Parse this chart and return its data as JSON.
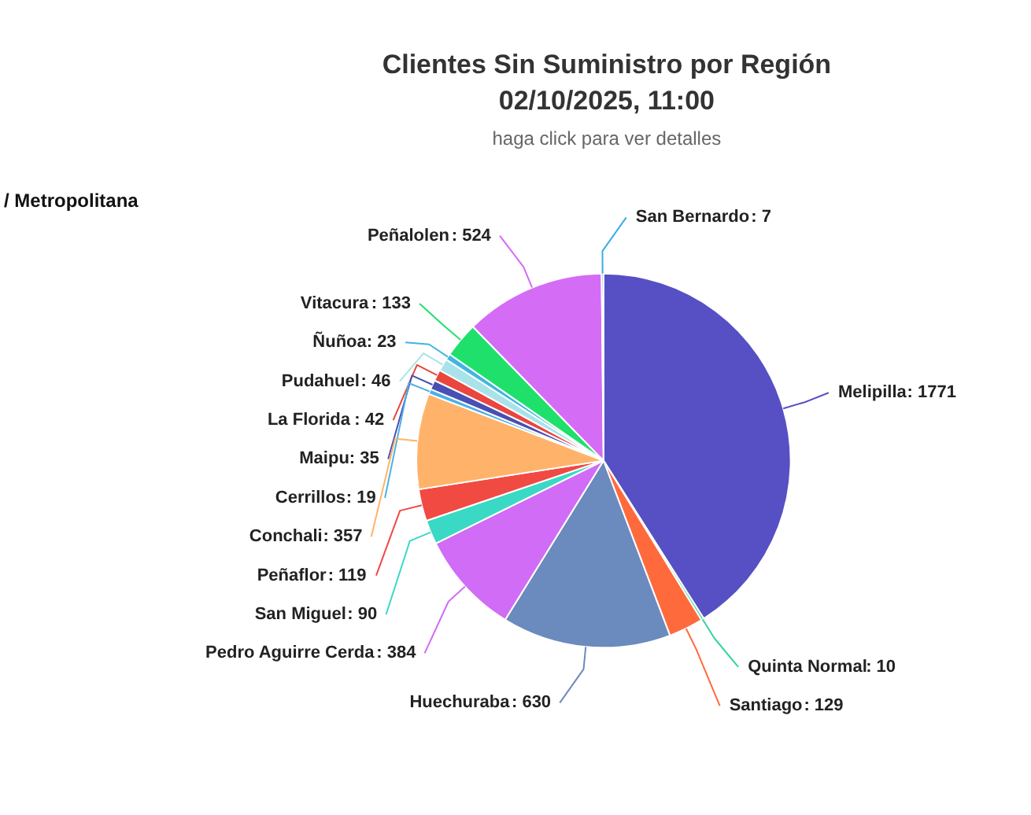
{
  "chart_data": {
    "type": "pie",
    "title": "Clientes Sin Suministro por Región\n02/10/2025, 11:00",
    "subtitle": "haga click para ver detalles",
    "annotations": [
      "/ Metropolitana"
    ],
    "categories": [
      "Melipilla",
      "Quinta Normal",
      "Santiago",
      "Huechuraba",
      "Pedro Aguirre Cerda",
      "San Miguel",
      "Peñaflor",
      "Conchali",
      "Cerrillos",
      "Maipu",
      "La Florida",
      "Pudahuel",
      "Ñuñoa",
      "Vitacura",
      "Peñalolen",
      "San Bernardo"
    ],
    "values": [
      1771,
      10,
      129,
      630,
      384,
      90,
      119,
      357,
      19,
      35,
      42,
      46,
      23,
      133,
      524,
      7
    ],
    "colors": [
      "#5650c4",
      "#2fd6a0",
      "#ff6a3d",
      "#6b8abd",
      "#d06cf5",
      "#3ad9c5",
      "#f04a43",
      "#ffb36a",
      "#4ab0e8",
      "#4a4fb3",
      "#e8463f",
      "#a9e3ea",
      "#3fb6e0",
      "#20e06c",
      "#d46cf5",
      "#3aaee0"
    ],
    "value_labels": [
      ": 1771",
      ": 10",
      ": 129",
      ": 630",
      ": 384",
      ": 90",
      ": 119",
      ": 357",
      ": 19",
      ": 35",
      ": 42",
      ": 46",
      ": 23",
      ": 133",
      ": 524",
      ": 7"
    ]
  }
}
